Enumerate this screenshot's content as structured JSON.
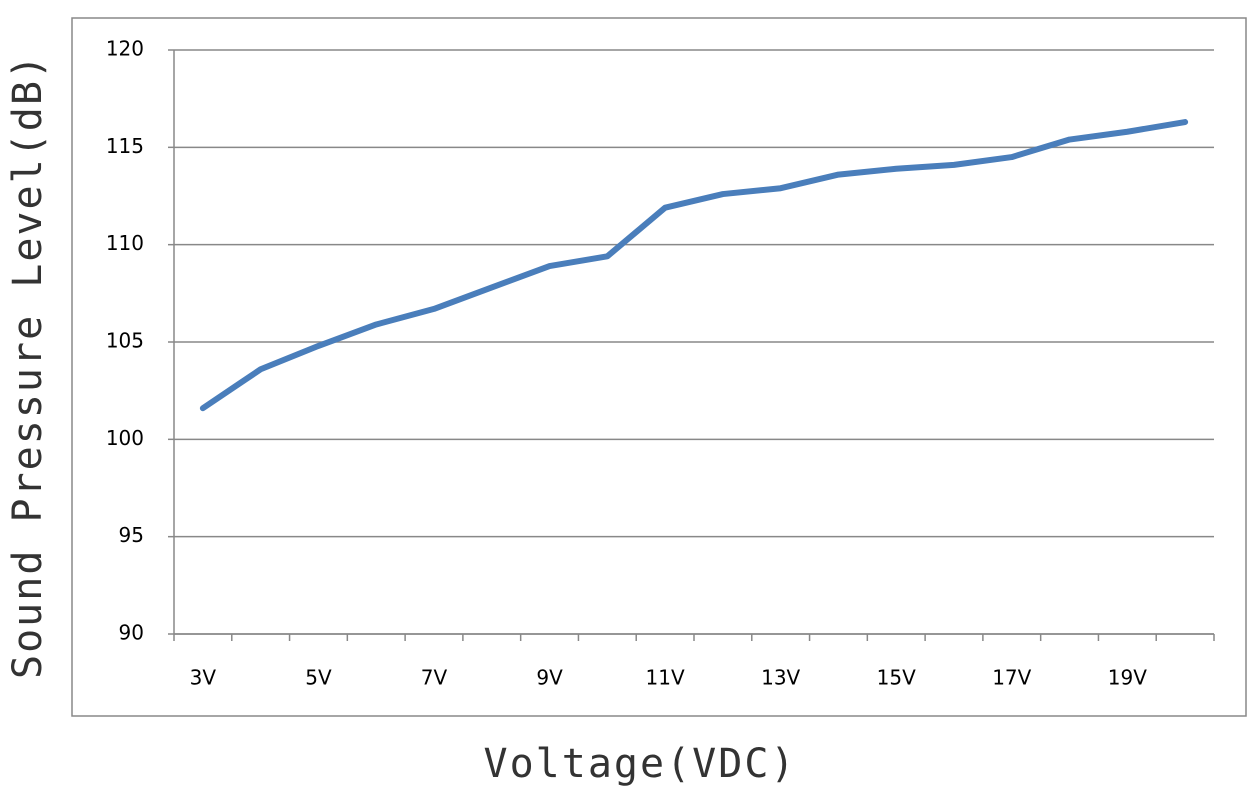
{
  "chart_data": {
    "type": "line",
    "y_label": "Sound Pressure Level(dB)",
    "x_label": "Voltage(VDC)",
    "categories": [
      "3V",
      null,
      "5V",
      null,
      "7V",
      null,
      "9V",
      null,
      "11V",
      null,
      "13V",
      null,
      "15V",
      null,
      "17V",
      null,
      "19V",
      null
    ],
    "values": [
      101.6,
      103.6,
      104.8,
      105.9,
      106.7,
      107.8,
      108.9,
      109.4,
      111.9,
      112.6,
      112.9,
      113.6,
      113.9,
      114.1,
      114.5,
      115.4,
      115.8,
      116.3
    ],
    "color": "#4a7ebb",
    "ylim": [
      90,
      120
    ],
    "yticks": [
      90,
      95,
      100,
      105,
      110,
      115,
      120
    ],
    "grid": true
  }
}
